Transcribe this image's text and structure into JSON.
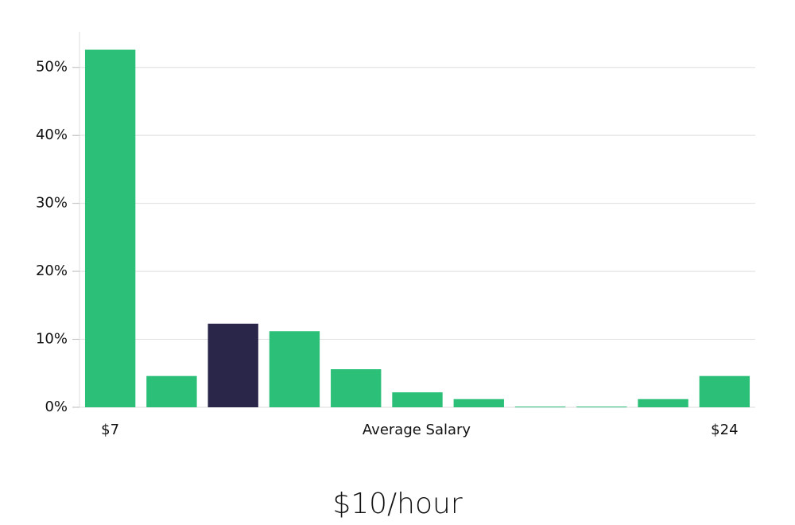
{
  "chart_data": {
    "type": "bar",
    "title": "$10/hour",
    "x_label": "Average Salary",
    "categories": [
      "$7",
      null,
      null,
      null,
      null,
      null,
      null,
      null,
      null,
      null,
      "$24"
    ],
    "values": [
      52.6,
      4.6,
      12.3,
      11.2,
      5.6,
      2.2,
      1.2,
      0.1,
      0.1,
      1.2,
      4.6
    ],
    "colors": [
      "#2bbf78",
      "#2bbf78",
      "#29264a",
      "#2bbf78",
      "#2bbf78",
      "#2bbf78",
      "#2bbf78",
      "#2bbf78",
      "#2bbf78",
      "#2bbf78",
      "#2bbf78"
    ],
    "ylim": [
      0,
      55
    ],
    "yticks": [
      {
        "value": 0,
        "label": "0%"
      },
      {
        "value": 10,
        "label": "10%"
      },
      {
        "value": 20,
        "label": "20%"
      },
      {
        "value": 30,
        "label": "30%"
      },
      {
        "value": 40,
        "label": "40%"
      },
      {
        "value": 50,
        "label": "50%"
      }
    ],
    "grid": true
  }
}
